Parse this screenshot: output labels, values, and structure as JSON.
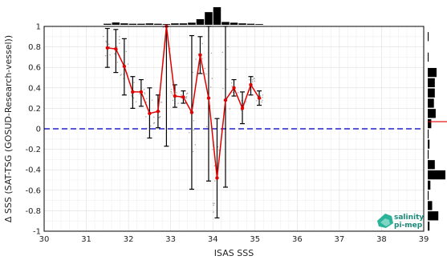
{
  "chart_data": {
    "type": "line",
    "title": "",
    "xlabel": "ISAS SSS",
    "ylabel": "Δ SSS (SAT-TSG (GOSUD-Research-vessel))",
    "xlim": [
      30,
      39
    ],
    "ylim": [
      -1,
      1
    ],
    "xticks": [
      "30",
      "31",
      "32",
      "33",
      "34",
      "35",
      "36",
      "37",
      "38",
      "39"
    ],
    "yticks": [
      "-1",
      "-0.8",
      "-0.6",
      "-0.4",
      "-0.2",
      "0",
      "0.2",
      "0.4",
      "0.6",
      "0.8",
      "1"
    ],
    "grid": true,
    "zero_line": {
      "y": 0,
      "style": "dashed",
      "color": "#2222cc"
    },
    "series": [
      {
        "color": "#e00000",
        "x": [
          31.5,
          31.7,
          31.9,
          32.1,
          32.3,
          32.5,
          32.7,
          32.9,
          33.1,
          33.3,
          33.5,
          33.7,
          33.9,
          34.1,
          34.3,
          34.5,
          34.7,
          34.9,
          35.1
        ],
        "y": [
          0.79,
          0.78,
          0.61,
          0.36,
          0.36,
          0.15,
          0.17,
          1.0,
          0.32,
          0.31,
          0.16,
          0.72,
          0.3,
          -0.48,
          0.28,
          0.4,
          0.2,
          0.43,
          0.3
        ],
        "err_low": [
          0.6,
          0.55,
          0.33,
          0.2,
          0.22,
          -0.09,
          0.01,
          -0.17,
          0.21,
          0.25,
          -0.59,
          0.54,
          -0.51,
          -0.87,
          -0.57,
          0.32,
          0.05,
          0.33,
          0.23
        ],
        "err_high": [
          0.98,
          0.97,
          0.88,
          0.51,
          0.48,
          0.4,
          0.33,
          1.0,
          0.43,
          0.37,
          0.91,
          0.9,
          1.0,
          0.1,
          1.0,
          0.48,
          0.36,
          0.51,
          0.37
        ]
      }
    ],
    "scatter_color": "#999999",
    "top_histogram": {
      "color": "#000000",
      "x": [
        31.5,
        31.7,
        31.9,
        32.1,
        32.3,
        32.5,
        32.7,
        32.9,
        33.1,
        33.3,
        33.5,
        33.7,
        33.9,
        34.1,
        34.3,
        34.5,
        34.7,
        34.9,
        35.1
      ],
      "counts": [
        0.06,
        0.13,
        0.08,
        0.06,
        0.06,
        0.08,
        0.06,
        0.04,
        0.08,
        0.08,
        0.12,
        0.32,
        0.72,
        1.0,
        0.16,
        0.12,
        0.08,
        0.06,
        0.04
      ]
    },
    "right_histogram": {
      "color": "#000000",
      "y": [
        0.9,
        0.7,
        0.55,
        0.45,
        0.35,
        0.25,
        0.15,
        0.05,
        -0.05,
        -0.15,
        -0.25,
        -0.35,
        -0.45,
        -0.55,
        -0.65,
        -0.75,
        -0.85,
        -0.95
      ],
      "counts": [
        0.05,
        0.05,
        0.5,
        0.4,
        0.4,
        0.35,
        0.45,
        0.2,
        0.05,
        0.1,
        0.05,
        0.4,
        1.0,
        0.15,
        0.05,
        0.25,
        0.6,
        0.1
      ]
    },
    "right_marker": {
      "y": 0.07,
      "color": "#e00000"
    }
  },
  "logo": {
    "line1": "salinity",
    "line2": "pi-mep",
    "color_text": "#1a8a7a",
    "color_icon": "#2bb39a"
  }
}
